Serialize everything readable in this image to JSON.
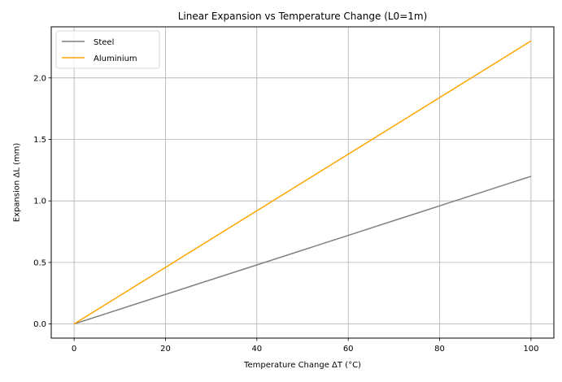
{
  "chart_data": {
    "type": "line",
    "title": "Linear Expansion vs Temperature Change (L0=1m)",
    "xlabel": "Temperature Change ΔT (°C)",
    "ylabel": "Expansion ΔL (mm)",
    "xlim": [
      -5,
      105
    ],
    "ylim": [
      -0.115,
      2.415
    ],
    "xticks": [
      0,
      20,
      40,
      60,
      80,
      100
    ],
    "xtick_labels": [
      "0",
      "20",
      "40",
      "60",
      "80",
      "100"
    ],
    "yticks": [
      0.0,
      0.5,
      1.0,
      1.5,
      2.0
    ],
    "ytick_labels": [
      "0.0",
      "0.5",
      "1.0",
      "1.5",
      "2.0"
    ],
    "grid": true,
    "legend_position": "top-left",
    "series": [
      {
        "name": "Steel",
        "color": "#808080",
        "x": [
          0,
          100
        ],
        "y": [
          0.0,
          1.2
        ]
      },
      {
        "name": "Aluminium",
        "color": "#ffa500",
        "x": [
          0,
          100
        ],
        "y": [
          0.0,
          2.3
        ]
      }
    ]
  }
}
